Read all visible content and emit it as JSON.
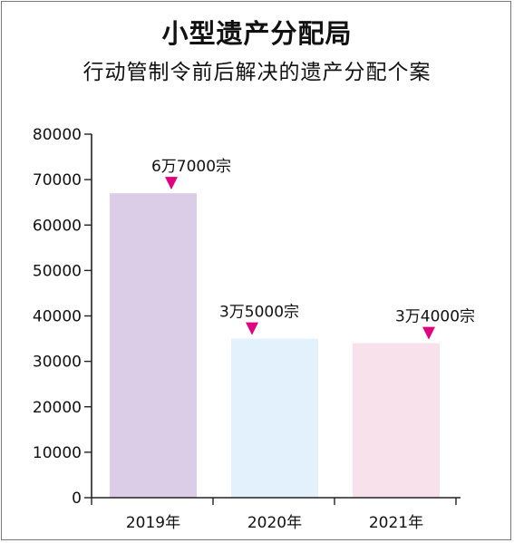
{
  "title": "小型遗产分配局",
  "subtitle": "行动管制令前后解决的遗产分配个案",
  "chart_data": {
    "type": "bar",
    "title": "小型遗产分配局",
    "subtitle": "行动管制令前后解决的遗产分配个案",
    "categories": [
      "2019年",
      "2020年",
      "2021年"
    ],
    "values": [
      67000,
      35000,
      34000
    ],
    "data_labels": [
      "6万7000宗",
      "3万5000宗",
      "3万4000宗"
    ],
    "bar_colors": [
      "#dbcde8",
      "#e2f1fb",
      "#f9e1ec"
    ],
    "marker_color": "#e0007f",
    "yticks": [
      "0",
      "10000",
      "20000",
      "30000",
      "40000",
      "50000",
      "60000",
      "70000",
      "80000"
    ],
    "ylim": [
      0,
      80000
    ],
    "xlabel": "",
    "ylabel": "",
    "grid": false,
    "legend": "none"
  }
}
